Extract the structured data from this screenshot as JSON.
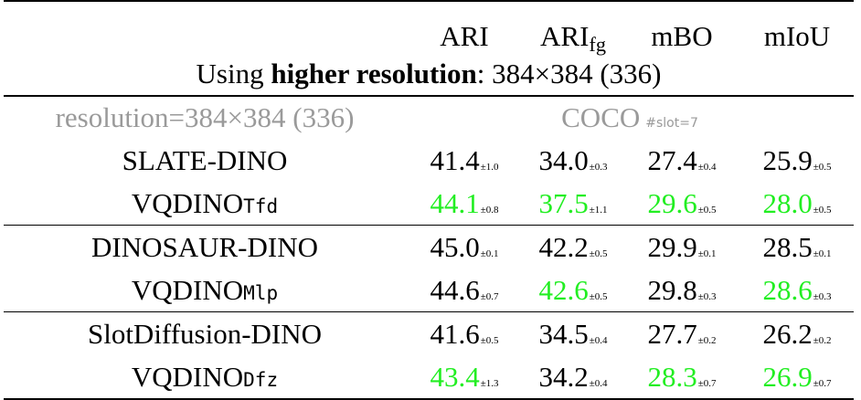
{
  "header": {
    "ari": "ARI",
    "arifg_main": "ARI",
    "arifg_sub": "fg",
    "mbo": "mBO",
    "miou": "mIoU"
  },
  "caption": {
    "prefix": "Using ",
    "bold": "higher resolution",
    "suffix": ": 384×384 (336)"
  },
  "setting": {
    "resolution": "resolution=384×384 (336)",
    "dataset": "COCO",
    "slot": "#slot=7"
  },
  "colors": {
    "highlight": "#22ee22",
    "setting_gray": "#9a9a9a"
  },
  "rows": [
    {
      "name": "SLATE-DINO",
      "suffix": "",
      "cells": [
        {
          "v": "41.4",
          "s": "±1.0",
          "hi": false
        },
        {
          "v": "34.0",
          "s": "±0.3",
          "hi": false
        },
        {
          "v": "27.4",
          "s": "±0.4",
          "hi": false
        },
        {
          "v": "25.9",
          "s": "±0.5",
          "hi": false
        }
      ]
    },
    {
      "name": "VQDINO",
      "suffix": "Tfd",
      "cells": [
        {
          "v": "44.1",
          "s": "±0.8",
          "hi": true
        },
        {
          "v": "37.5",
          "s": "±1.1",
          "hi": true
        },
        {
          "v": "29.6",
          "s": "±0.5",
          "hi": true
        },
        {
          "v": "28.0",
          "s": "±0.5",
          "hi": true
        }
      ]
    },
    {
      "name": "DINOSAUR-DINO",
      "suffix": "",
      "cells": [
        {
          "v": "45.0",
          "s": "±0.1",
          "hi": false
        },
        {
          "v": "42.2",
          "s": "±0.5",
          "hi": false
        },
        {
          "v": "29.9",
          "s": "±0.1",
          "hi": false
        },
        {
          "v": "28.5",
          "s": "±0.1",
          "hi": false
        }
      ]
    },
    {
      "name": "VQDINO",
      "suffix": "Mlp",
      "cells": [
        {
          "v": "44.6",
          "s": "±0.7",
          "hi": false
        },
        {
          "v": "42.6",
          "s": "±0.5",
          "hi": true
        },
        {
          "v": "29.8",
          "s": "±0.3",
          "hi": false
        },
        {
          "v": "28.6",
          "s": "±0.3",
          "hi": true
        }
      ]
    },
    {
      "name": "SlotDiffusion-DINO",
      "suffix": "",
      "cells": [
        {
          "v": "41.6",
          "s": "±0.5",
          "hi": false
        },
        {
          "v": "34.5",
          "s": "±0.4",
          "hi": false
        },
        {
          "v": "27.7",
          "s": "±0.2",
          "hi": false
        },
        {
          "v": "26.2",
          "s": "±0.2",
          "hi": false
        }
      ]
    },
    {
      "name": "VQDINO",
      "suffix": "Dfz",
      "cells": [
        {
          "v": "43.4",
          "s": "±1.3",
          "hi": true
        },
        {
          "v": "34.2",
          "s": "±0.4",
          "hi": false
        },
        {
          "v": "28.3",
          "s": "±0.7",
          "hi": true
        },
        {
          "v": "26.9",
          "s": "±0.7",
          "hi": true
        }
      ]
    }
  ]
}
